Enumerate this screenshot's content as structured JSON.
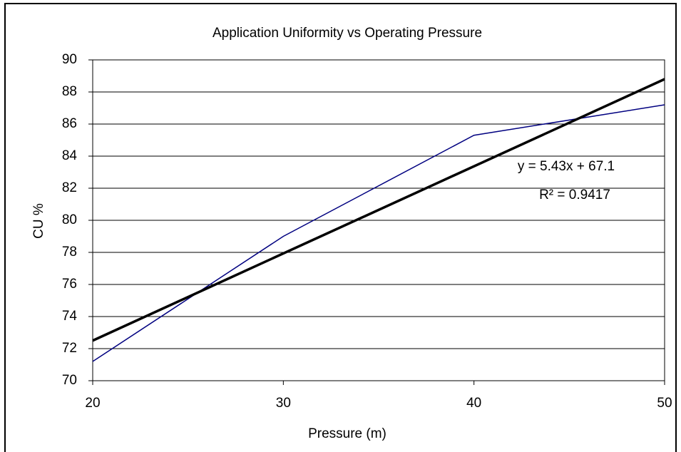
{
  "chart_data": {
    "type": "line",
    "title": "Application Uniformity vs Operating Pressure",
    "x_label": "Pressure (m)",
    "y_label": "CU %",
    "x": [
      20,
      30,
      40,
      50
    ],
    "series": [
      {
        "name": "CU",
        "color": "#000080",
        "values": [
          71.2,
          79.0,
          85.3,
          87.2
        ]
      }
    ],
    "trendline": {
      "x": [
        20,
        50
      ],
      "values": [
        72.5,
        88.8
      ],
      "color": "#000000"
    },
    "annotations": [
      "y = 5.43x + 67.1",
      "R² = 0.9417"
    ],
    "xlim": [
      20,
      50
    ],
    "xticks": [
      20,
      30,
      40,
      50
    ],
    "ylim": [
      70,
      90
    ],
    "yticks": [
      70,
      72,
      74,
      76,
      78,
      80,
      82,
      84,
      86,
      88,
      90
    ],
    "grid": true
  }
}
